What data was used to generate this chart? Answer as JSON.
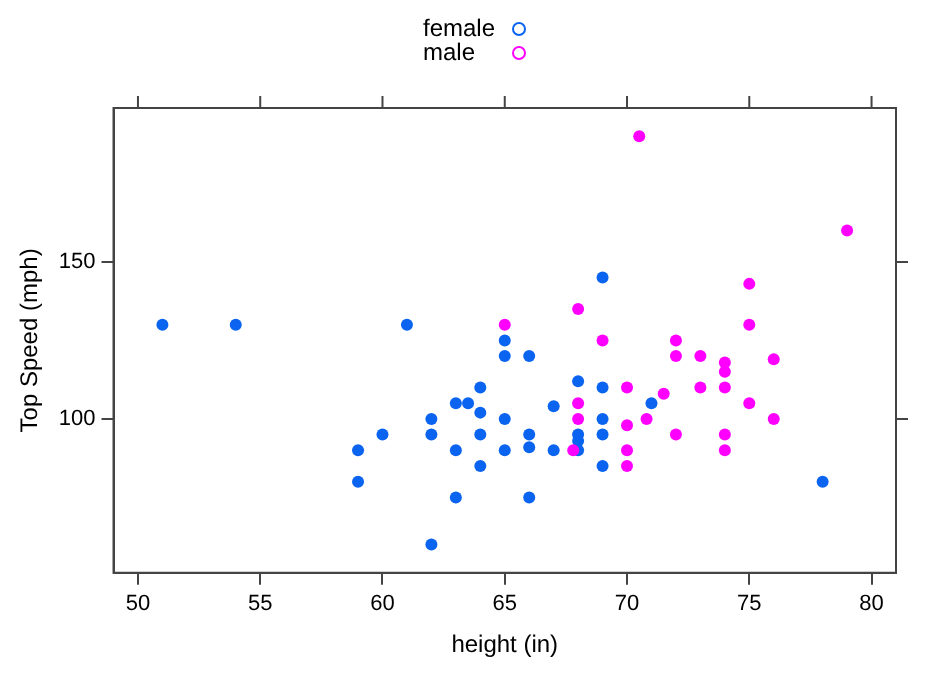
{
  "chart_data": {
    "type": "scatter",
    "xlabel": "height (in)",
    "ylabel": "Top Speed (mph)",
    "xlim": [
      49,
      81
    ],
    "xticks": [
      50,
      55,
      60,
      65,
      70,
      75,
      80
    ],
    "ylim": [
      51,
      199
    ],
    "yticks": [
      100,
      150
    ],
    "grid": false,
    "legend": "top",
    "marker": "circle",
    "series": [
      {
        "name": "female",
        "color": "#0a64f0",
        "x": [
          51,
          54,
          61,
          65,
          65,
          64,
          63,
          63.5,
          64,
          62,
          65,
          60,
          62,
          64,
          59,
          63,
          65,
          64,
          59,
          63,
          62,
          66,
          69,
          68,
          69,
          67,
          71,
          69,
          66,
          68,
          69,
          68,
          66,
          67,
          68,
          69,
          66,
          78
        ],
        "values": [
          130,
          130,
          130,
          125,
          120,
          110,
          105,
          105,
          102,
          100,
          100,
          95,
          95,
          95,
          90,
          90,
          90,
          85,
          80,
          75,
          60,
          120,
          145,
          112,
          110,
          104,
          105,
          100,
          95,
          95,
          95,
          93,
          91,
          90,
          90,
          85,
          75,
          80
        ]
      },
      {
        "name": "male",
        "color": "#ff00ff",
        "x": [
          65,
          70.5,
          79,
          75,
          68,
          75,
          69,
          72,
          72,
          73,
          74,
          76,
          74,
          73,
          74,
          70,
          71.5,
          68,
          75,
          68,
          70.8,
          76,
          70,
          72,
          74,
          67.8,
          70,
          74,
          70
        ],
        "values": [
          130,
          190,
          160,
          143,
          135,
          130,
          125,
          125,
          120,
          120,
          118,
          119,
          115,
          110,
          110,
          110,
          108,
          105,
          105,
          100,
          100,
          100,
          98,
          95,
          95,
          90,
          90,
          90,
          85
        ]
      }
    ]
  }
}
